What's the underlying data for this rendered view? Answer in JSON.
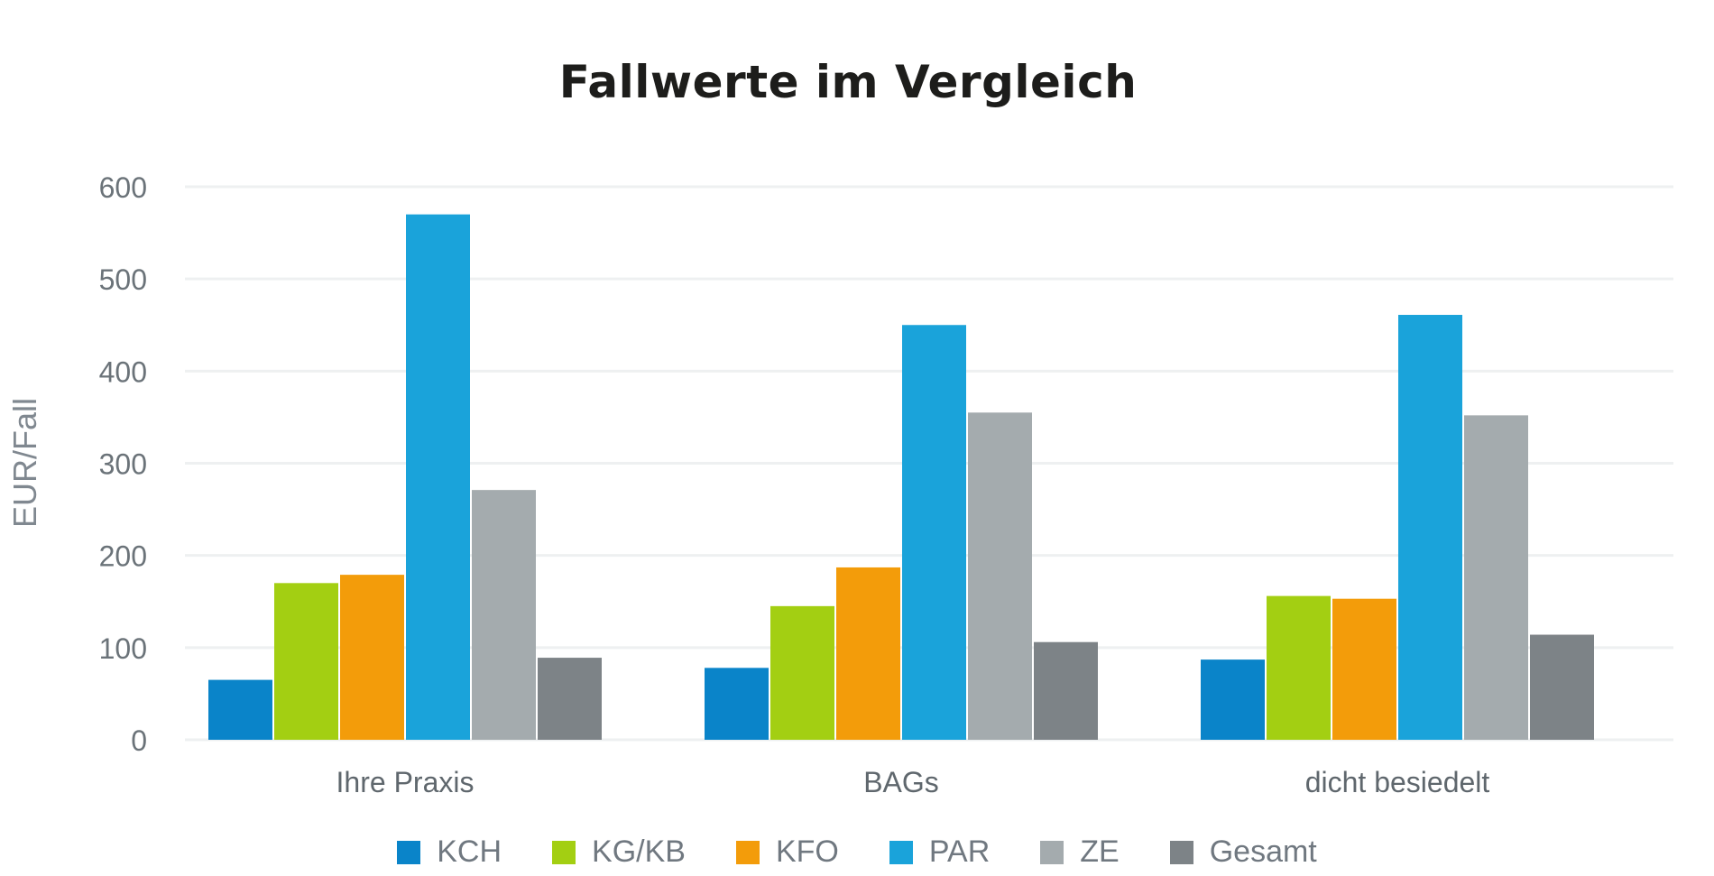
{
  "chart_data": {
    "type": "bar",
    "title": "Fallwerte im Vergleich",
    "xlabel": "",
    "ylabel": "EUR/Fall",
    "ylim": [
      0,
      600
    ],
    "yticks": [
      0,
      100,
      200,
      300,
      400,
      500,
      600
    ],
    "grid": true,
    "legend_position": "bottom",
    "categories": [
      "Ihre Praxis",
      "BAGs",
      "dicht besiedelt"
    ],
    "series": [
      {
        "name": "KCH",
        "color": "#0a84c9",
        "values": [
          65,
          78,
          87
        ]
      },
      {
        "name": "KG/KB",
        "color": "#a3cf12",
        "values": [
          170,
          145,
          156
        ]
      },
      {
        "name": "KFO",
        "color": "#f39c0a",
        "values": [
          179,
          187,
          153
        ]
      },
      {
        "name": "PAR",
        "color": "#1aa3da",
        "values": [
          570,
          450,
          461
        ]
      },
      {
        "name": "ZE",
        "color": "#a4abae",
        "values": [
          271,
          355,
          352
        ]
      },
      {
        "name": "Gesamt",
        "color": "#7d8387",
        "values": [
          89,
          106,
          114
        ]
      }
    ]
  }
}
